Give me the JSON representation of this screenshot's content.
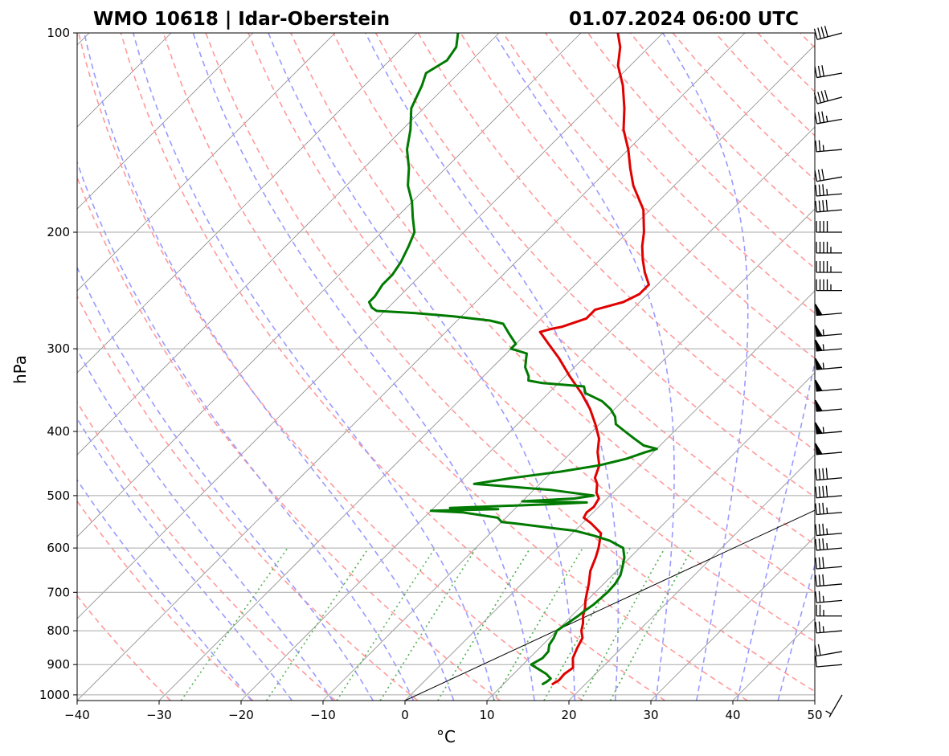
{
  "chart_data": {
    "type": "line",
    "subtype": "skew-t log-p diagram",
    "title_left": "WMO 10618 | Idar-Oberstein",
    "title_right": "01.07.2024 06:00 UTC",
    "xlabel": "°C",
    "ylabel": "hPa",
    "xlim": [
      -40,
      50
    ],
    "ylim": [
      1020,
      100
    ],
    "x_ticks": [
      "−40",
      "−30",
      "−20",
      "−10",
      "0",
      "10",
      "20",
      "30",
      "40",
      "50"
    ],
    "y_ticks": [
      "100",
      "200",
      "300",
      "400",
      "500",
      "600",
      "700",
      "800",
      "900",
      "1000"
    ],
    "colors": {
      "temperature": "#e00000",
      "dewpoint": "#007a00",
      "isotherm": "#8c8c8c",
      "dry_adiabat": "#ff9a9a",
      "moist_adiabat": "#9a9aff",
      "mixing_ratio": "#55b355",
      "grid": "#a9a9a9"
    },
    "series": [
      {
        "name": "Temperature",
        "color": "#e00000",
        "points": [
          [
            963,
            16.0
          ],
          [
            950,
            16.3
          ],
          [
            930,
            16.2
          ],
          [
            910,
            16.5
          ],
          [
            880,
            15.3
          ],
          [
            850,
            14.6
          ],
          [
            820,
            14.0
          ],
          [
            800,
            13.0
          ],
          [
            780,
            12.3
          ],
          [
            760,
            11.4
          ],
          [
            740,
            10.7
          ],
          [
            720,
            9.8
          ],
          [
            700,
            9.0
          ],
          [
            680,
            8.2
          ],
          [
            650,
            6.8
          ],
          [
            620,
            5.8
          ],
          [
            600,
            5.0
          ],
          [
            570,
            3.5
          ],
          [
            550,
            1.0
          ],
          [
            540,
            -0.5
          ],
          [
            530,
            -0.8
          ],
          [
            520,
            -0.6
          ],
          [
            505,
            -1.0
          ],
          [
            495,
            -2.0
          ],
          [
            480,
            -3.0
          ],
          [
            470,
            -4.0
          ],
          [
            450,
            -5.0
          ],
          [
            430,
            -6.8
          ],
          [
            410,
            -8.3
          ],
          [
            390,
            -10.5
          ],
          [
            370,
            -13.0
          ],
          [
            350,
            -16.0
          ],
          [
            330,
            -19.5
          ],
          [
            310,
            -23.0
          ],
          [
            295,
            -26.0
          ],
          [
            283,
            -28.5
          ],
          [
            280,
            -27.5
          ],
          [
            278,
            -26.5
          ],
          [
            270,
            -24.5
          ],
          [
            262,
            -24.5
          ],
          [
            255,
            -22.0
          ],
          [
            248,
            -21.0
          ],
          [
            240,
            -21.0
          ],
          [
            230,
            -23.0
          ],
          [
            220,
            -24.8
          ],
          [
            210,
            -26.5
          ],
          [
            200,
            -28.0
          ],
          [
            185,
            -30.8
          ],
          [
            170,
            -35.0
          ],
          [
            160,
            -37.5
          ],
          [
            150,
            -40.0
          ],
          [
            140,
            -43.0
          ],
          [
            130,
            -45.5
          ],
          [
            120,
            -48.5
          ],
          [
            112,
            -51.5
          ],
          [
            105,
            -53.5
          ],
          [
            100,
            -55.5
          ]
        ]
      },
      {
        "name": "Dewpoint",
        "color": "#007a00",
        "points": [
          [
            963,
            14.8
          ],
          [
            955,
            15.0
          ],
          [
            945,
            15.1
          ],
          [
            930,
            14.0
          ],
          [
            900,
            11.0
          ],
          [
            880,
            11.6
          ],
          [
            860,
            11.5
          ],
          [
            840,
            10.8
          ],
          [
            820,
            10.5
          ],
          [
            800,
            10.0
          ],
          [
            780,
            10.4
          ],
          [
            760,
            10.8
          ],
          [
            745,
            11.0
          ],
          [
            730,
            11.3
          ],
          [
            700,
            11.5
          ],
          [
            680,
            11.4
          ],
          [
            660,
            11.0
          ],
          [
            640,
            10.2
          ],
          [
            620,
            9.3
          ],
          [
            600,
            8.0
          ],
          [
            585,
            5.5
          ],
          [
            575,
            3.0
          ],
          [
            565,
            0.0
          ],
          [
            560,
            -3.0
          ],
          [
            552,
            -7.5
          ],
          [
            548,
            -10.0
          ],
          [
            540,
            -11.0
          ],
          [
            530,
            -16.0
          ],
          [
            527,
            -20.0
          ],
          [
            524,
            -12.0
          ],
          [
            522,
            -18.0
          ],
          [
            515,
            -6.0
          ],
          [
            512,
            -2.0
          ],
          [
            510,
            -10.0
          ],
          [
            505,
            -4.0
          ],
          [
            500,
            -2.0
          ],
          [
            495,
            -5.0
          ],
          [
            490,
            -8.0
          ],
          [
            486,
            -12.0
          ],
          [
            480,
            -18.0
          ],
          [
            470,
            -14.0
          ],
          [
            460,
            -9.0
          ],
          [
            450,
            -5.0
          ],
          [
            440,
            -2.5
          ],
          [
            430,
            -1.0
          ],
          [
            425,
            0.0
          ],
          [
            420,
            -2.0
          ],
          [
            410,
            -4.0
          ],
          [
            400,
            -6.0
          ],
          [
            390,
            -8.0
          ],
          [
            380,
            -9.0
          ],
          [
            370,
            -10.5
          ],
          [
            360,
            -12.5
          ],
          [
            350,
            -15.5
          ],
          [
            342,
            -16.5
          ],
          [
            338,
            -22.0
          ],
          [
            335,
            -24.0
          ],
          [
            330,
            -24.5
          ],
          [
            320,
            -26.0
          ],
          [
            310,
            -27.0
          ],
          [
            305,
            -27.5
          ],
          [
            300,
            -30.0
          ],
          [
            295,
            -30.0
          ],
          [
            285,
            -32.0
          ],
          [
            280,
            -33.0
          ],
          [
            275,
            -34.0
          ],
          [
            272,
            -36.0
          ],
          [
            268,
            -41.0
          ],
          [
            265,
            -46.0
          ],
          [
            263,
            -51.0
          ],
          [
            260,
            -52.0
          ],
          [
            255,
            -53.0
          ],
          [
            250,
            -53.0
          ],
          [
            240,
            -53.5
          ],
          [
            232,
            -53.5
          ],
          [
            222,
            -54.0
          ],
          [
            210,
            -55.0
          ],
          [
            200,
            -56.0
          ],
          [
            190,
            -58.0
          ],
          [
            180,
            -60.0
          ],
          [
            170,
            -62.5
          ],
          [
            160,
            -64.5
          ],
          [
            150,
            -67.0
          ],
          [
            140,
            -69.0
          ],
          [
            130,
            -71.5
          ],
          [
            120,
            -73.0
          ],
          [
            115,
            -74.0
          ],
          [
            110,
            -73.0
          ],
          [
            105,
            -73.5
          ],
          [
            100,
            -75.0
          ]
        ]
      }
    ],
    "reference_line": {
      "name": "0 °C isotherm",
      "points": [
        [
          1020,
          0
        ],
        [
          100,
          94
        ]
      ]
    },
    "isotherms_C": [
      -200,
      -190,
      -180,
      -170,
      -160,
      -150,
      -140,
      -130,
      -120,
      -110,
      -100,
      -90,
      -80,
      -70,
      -60,
      -50,
      -40,
      -30,
      -20,
      -10,
      0,
      10,
      20,
      30,
      40,
      50
    ],
    "dry_adiabats_C": [
      -30,
      -20,
      -10,
      0,
      10,
      20,
      30,
      40,
      50,
      60,
      70,
      80,
      90,
      100,
      110,
      120,
      130,
      140,
      150,
      160,
      170,
      180,
      190,
      200
    ],
    "moist_adiabats_C": [
      -20,
      -15,
      -10,
      -5,
      0,
      5,
      10,
      15,
      20,
      25,
      30,
      35,
      40,
      45
    ],
    "mixing_ratio_g_kg": [
      0.4,
      1,
      2,
      3,
      5,
      8,
      12,
      16,
      20
    ],
    "wind_barbs": [
      {
        "p": 100,
        "dir": 255,
        "kt": 40
      },
      {
        "p": 115,
        "dir": 260,
        "kt": 30
      },
      {
        "p": 125,
        "dir": 255,
        "kt": 40
      },
      {
        "p": 135,
        "dir": 260,
        "kt": 35
      },
      {
        "p": 150,
        "dir": 265,
        "kt": 25
      },
      {
        "p": 165,
        "dir": 260,
        "kt": 30
      },
      {
        "p": 175,
        "dir": 265,
        "kt": 35
      },
      {
        "p": 185,
        "dir": 265,
        "kt": 40
      },
      {
        "p": 200,
        "dir": 270,
        "kt": 40
      },
      {
        "p": 215,
        "dir": 270,
        "kt": 45
      },
      {
        "p": 230,
        "dir": 270,
        "kt": 45
      },
      {
        "p": 245,
        "dir": 270,
        "kt": 45
      },
      {
        "p": 265,
        "dir": 265,
        "kt": 50
      },
      {
        "p": 285,
        "dir": 265,
        "kt": 55
      },
      {
        "p": 300,
        "dir": 265,
        "kt": 55
      },
      {
        "p": 320,
        "dir": 265,
        "kt": 55
      },
      {
        "p": 345,
        "dir": 265,
        "kt": 50
      },
      {
        "p": 370,
        "dir": 265,
        "kt": 50
      },
      {
        "p": 400,
        "dir": 265,
        "kt": 55
      },
      {
        "p": 430,
        "dir": 265,
        "kt": 50
      },
      {
        "p": 470,
        "dir": 265,
        "kt": 40
      },
      {
        "p": 500,
        "dir": 265,
        "kt": 40
      },
      {
        "p": 530,
        "dir": 265,
        "kt": 35
      },
      {
        "p": 570,
        "dir": 265,
        "kt": 35
      },
      {
        "p": 600,
        "dir": 265,
        "kt": 35
      },
      {
        "p": 640,
        "dir": 265,
        "kt": 30
      },
      {
        "p": 680,
        "dir": 265,
        "kt": 30
      },
      {
        "p": 720,
        "dir": 265,
        "kt": 25
      },
      {
        "p": 760,
        "dir": 270,
        "kt": 25
      },
      {
        "p": 800,
        "dir": 265,
        "kt": 25
      },
      {
        "p": 860,
        "dir": 260,
        "kt": 20
      },
      {
        "p": 900,
        "dir": 265,
        "kt": 10
      },
      {
        "p": 1000,
        "dir": 210,
        "kt": 5
      }
    ]
  }
}
